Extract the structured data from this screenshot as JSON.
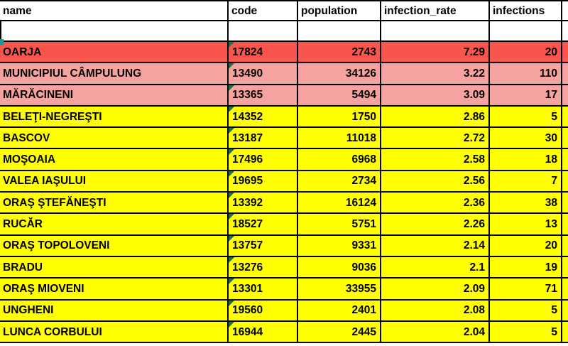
{
  "colors": {
    "red": "#F8554C",
    "pink": "#F5A3A0",
    "yellow": "#FFFF00",
    "white": "#FFFFFF",
    "border": "#000000",
    "error_triangle_green": "#1E7145",
    "selection_handle_teal": "#1D9690"
  },
  "table": {
    "columns": [
      {
        "key": "name",
        "label": "name"
      },
      {
        "key": "code",
        "label": "code"
      },
      {
        "key": "population",
        "label": "population"
      },
      {
        "key": "infection_rate",
        "label": "infection_rate"
      },
      {
        "key": "infections",
        "label": "infections"
      }
    ],
    "rows": [
      {
        "name": "OARJA",
        "code": "17824",
        "population": "2743",
        "infection_rate": "7.29",
        "infections": "20",
        "highlight": "red"
      },
      {
        "name": "MUNICIPIUL CÂMPULUNG",
        "code": "13490",
        "population": "34126",
        "infection_rate": "3.22",
        "infections": "110",
        "highlight": "pink"
      },
      {
        "name": "MĂRĂCINENI",
        "code": "13365",
        "population": "5494",
        "infection_rate": "3.09",
        "infections": "17",
        "highlight": "pink"
      },
      {
        "name": "BELEŢI-NEGREŞTI",
        "code": "14352",
        "population": "1750",
        "infection_rate": "2.86",
        "infections": "5",
        "highlight": "yellow"
      },
      {
        "name": "BASCOV",
        "code": "13187",
        "population": "11018",
        "infection_rate": "2.72",
        "infections": "30",
        "highlight": "yellow"
      },
      {
        "name": "MOŞOAIA",
        "code": "17496",
        "population": "6968",
        "infection_rate": "2.58",
        "infections": "18",
        "highlight": "yellow"
      },
      {
        "name": "VALEA IAŞULUI",
        "code": "19695",
        "population": "2734",
        "infection_rate": "2.56",
        "infections": "7",
        "highlight": "yellow"
      },
      {
        "name": "ORAŞ ŞTEFĂNEŞTI",
        "code": "13392",
        "population": "16124",
        "infection_rate": "2.36",
        "infections": "38",
        "highlight": "yellow"
      },
      {
        "name": "RUCĂR",
        "code": "18527",
        "population": "5751",
        "infection_rate": "2.26",
        "infections": "13",
        "highlight": "yellow"
      },
      {
        "name": "ORAŞ TOPOLOVENI",
        "code": "13757",
        "population": "9331",
        "infection_rate": "2.14",
        "infections": "20",
        "highlight": "yellow"
      },
      {
        "name": "BRADU",
        "code": "13276",
        "population": "9036",
        "infection_rate": "2.1",
        "infections": "19",
        "highlight": "yellow"
      },
      {
        "name": "ORAŞ MIOVENI",
        "code": "13301",
        "population": "33955",
        "infection_rate": "2.09",
        "infections": "71",
        "highlight": "yellow"
      },
      {
        "name": "UNGHENI",
        "code": "19560",
        "population": "2401",
        "infection_rate": "2.08",
        "infections": "5",
        "highlight": "yellow"
      },
      {
        "name": "LUNCA CORBULUI",
        "code": "16944",
        "population": "2445",
        "infection_rate": "2.04",
        "infections": "5",
        "highlight": "yellow"
      }
    ]
  }
}
